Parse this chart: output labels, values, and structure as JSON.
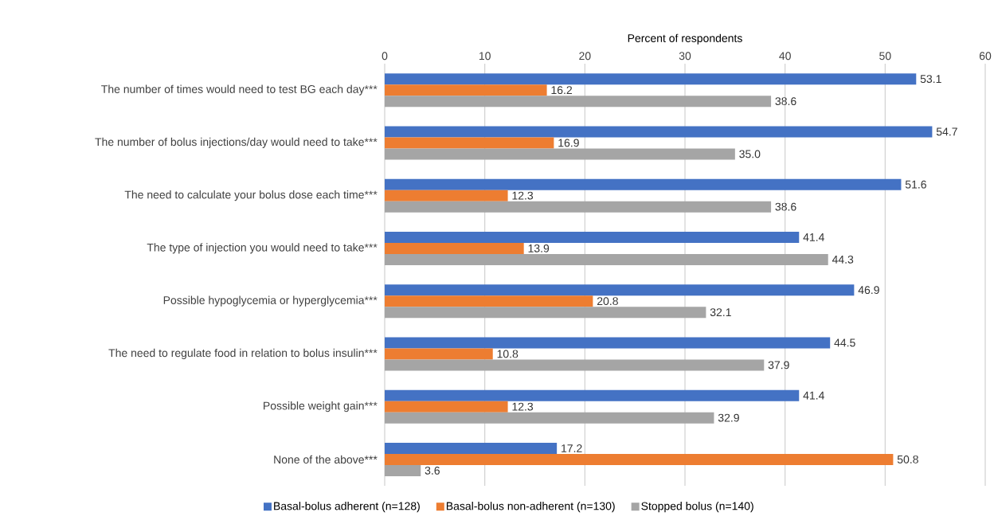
{
  "chart_data": {
    "type": "bar",
    "orientation": "horizontal",
    "xlabel": "Percent of respondents",
    "categories": [
      "The number of times would need to test BG each day***",
      "The number of bolus injections/day would need to take***",
      "The need to calculate your bolus dose each time***",
      "The type of injection you would need to take***",
      "Possible hypoglycemia or hyperglycemia***",
      "The need to regulate food in relation to bolus insulin***",
      "Possible weight gain***",
      "None of the above***"
    ],
    "series": [
      {
        "name": "Basal-bolus adherent (n=128)",
        "color": "#4472c4",
        "values": [
          53.1,
          54.7,
          51.6,
          41.4,
          46.9,
          44.5,
          41.4,
          17.2
        ],
        "value_labels": [
          "53.1",
          "54.7",
          "51.6",
          "41.4",
          "46.9",
          "44.5",
          "41.4",
          "17.2"
        ]
      },
      {
        "name": "Basal-bolus non-adherent (n=130)",
        "color": "#ed7d31",
        "values": [
          16.2,
          16.9,
          12.3,
          13.9,
          20.8,
          10.8,
          12.3,
          50.8
        ],
        "value_labels": [
          "16.2",
          "16.9",
          "12.3",
          "13.9",
          "20.8",
          "10.8",
          "12.3",
          "50.8"
        ]
      },
      {
        "name": "Stopped bolus (n=140)",
        "color": "#a5a5a5",
        "values": [
          38.6,
          35.0,
          38.6,
          44.3,
          32.1,
          37.9,
          32.9,
          3.6
        ],
        "value_labels": [
          "38.6",
          "35.0",
          "38.6",
          "44.3",
          "32.1",
          "37.9",
          "32.9",
          "3.6"
        ]
      }
    ],
    "xlim": [
      0,
      60
    ],
    "xticks": [
      0,
      10,
      20,
      30,
      40,
      50,
      60
    ],
    "grid": "x",
    "legend": "bottom"
  }
}
